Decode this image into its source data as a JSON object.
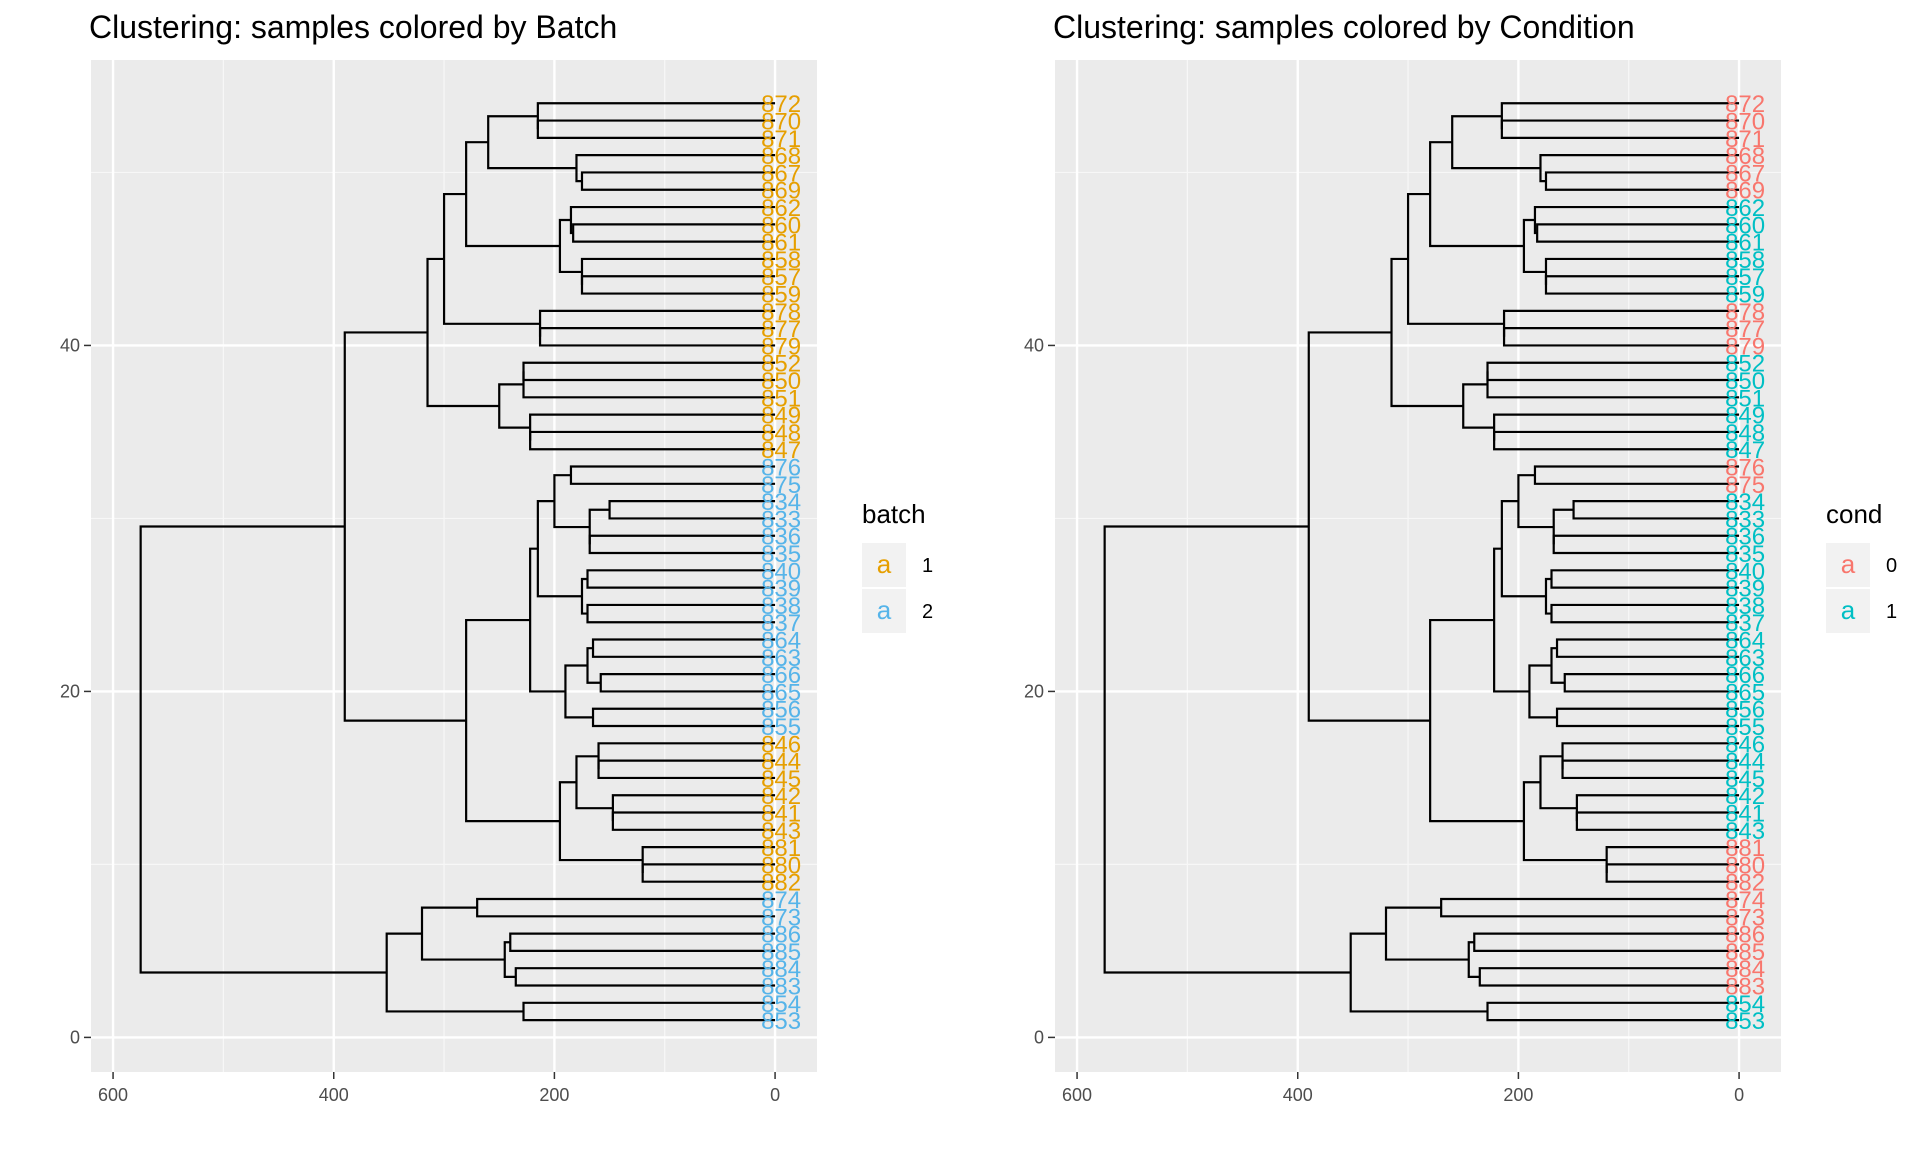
{
  "chart_data": [
    {
      "type": "dendrogram",
      "title": "Clustering: samples colored by Batch",
      "xlabel": "",
      "ylabel": "",
      "xlim": [
        620,
        -38
      ],
      "ylim": [
        -2,
        56.5
      ],
      "x_ticks": [
        600,
        400,
        200,
        0
      ],
      "y_ticks": [
        0,
        20,
        40
      ],
      "legend": {
        "title": "batch",
        "placement": "right",
        "key_glyph": "a",
        "entries": [
          {
            "label": "1",
            "color": "#E69F00"
          },
          {
            "label": "2",
            "color": "#56B4E9"
          }
        ]
      },
      "leaf_color_group": "batch"
    },
    {
      "type": "dendrogram",
      "title": "Clustering: samples colored by Condition",
      "xlabel": "",
      "ylabel": "",
      "xlim": [
        620,
        -38
      ],
      "ylim": [
        -2,
        56.5
      ],
      "x_ticks": [
        600,
        400,
        200,
        0
      ],
      "y_ticks": [
        0,
        20,
        40
      ],
      "legend": {
        "title": "cond",
        "placement": "right",
        "key_glyph": "a",
        "entries": [
          {
            "label": "0",
            "color": "#F8766D"
          },
          {
            "label": "1",
            "color": "#00BFC4"
          }
        ]
      },
      "leaf_color_group": "cond"
    }
  ],
  "leaves": [
    {
      "label": "853",
      "batch": "2",
      "cond": "1"
    },
    {
      "label": "854",
      "batch": "2",
      "cond": "1"
    },
    {
      "label": "883",
      "batch": "2",
      "cond": "0"
    },
    {
      "label": "884",
      "batch": "2",
      "cond": "0"
    },
    {
      "label": "885",
      "batch": "2",
      "cond": "0"
    },
    {
      "label": "886",
      "batch": "2",
      "cond": "0"
    },
    {
      "label": "873",
      "batch": "2",
      "cond": "0"
    },
    {
      "label": "874",
      "batch": "2",
      "cond": "0"
    },
    {
      "label": "882",
      "batch": "1",
      "cond": "0"
    },
    {
      "label": "880",
      "batch": "1",
      "cond": "0"
    },
    {
      "label": "881",
      "batch": "1",
      "cond": "0"
    },
    {
      "label": "843",
      "batch": "1",
      "cond": "1"
    },
    {
      "label": "841",
      "batch": "1",
      "cond": "1"
    },
    {
      "label": "842",
      "batch": "1",
      "cond": "1"
    },
    {
      "label": "845",
      "batch": "1",
      "cond": "1"
    },
    {
      "label": "844",
      "batch": "1",
      "cond": "1"
    },
    {
      "label": "846",
      "batch": "1",
      "cond": "1"
    },
    {
      "label": "855",
      "batch": "2",
      "cond": "1"
    },
    {
      "label": "856",
      "batch": "2",
      "cond": "1"
    },
    {
      "label": "865",
      "batch": "2",
      "cond": "1"
    },
    {
      "label": "866",
      "batch": "2",
      "cond": "1"
    },
    {
      "label": "863",
      "batch": "2",
      "cond": "1"
    },
    {
      "label": "864",
      "batch": "2",
      "cond": "1"
    },
    {
      "label": "837",
      "batch": "2",
      "cond": "1"
    },
    {
      "label": "838",
      "batch": "2",
      "cond": "1"
    },
    {
      "label": "839",
      "batch": "2",
      "cond": "1"
    },
    {
      "label": "840",
      "batch": "2",
      "cond": "1"
    },
    {
      "label": "835",
      "batch": "2",
      "cond": "1"
    },
    {
      "label": "836",
      "batch": "2",
      "cond": "1"
    },
    {
      "label": "833",
      "batch": "2",
      "cond": "1"
    },
    {
      "label": "834",
      "batch": "2",
      "cond": "1"
    },
    {
      "label": "875",
      "batch": "2",
      "cond": "0"
    },
    {
      "label": "876",
      "batch": "2",
      "cond": "0"
    },
    {
      "label": "847",
      "batch": "1",
      "cond": "1"
    },
    {
      "label": "848",
      "batch": "1",
      "cond": "1"
    },
    {
      "label": "849",
      "batch": "1",
      "cond": "1"
    },
    {
      "label": "851",
      "batch": "1",
      "cond": "1"
    },
    {
      "label": "850",
      "batch": "1",
      "cond": "1"
    },
    {
      "label": "852",
      "batch": "1",
      "cond": "1"
    },
    {
      "label": "879",
      "batch": "1",
      "cond": "0"
    },
    {
      "label": "877",
      "batch": "1",
      "cond": "0"
    },
    {
      "label": "878",
      "batch": "1",
      "cond": "0"
    },
    {
      "label": "859",
      "batch": "1",
      "cond": "1"
    },
    {
      "label": "857",
      "batch": "1",
      "cond": "1"
    },
    {
      "label": "858",
      "batch": "1",
      "cond": "1"
    },
    {
      "label": "861",
      "batch": "1",
      "cond": "1"
    },
    {
      "label": "860",
      "batch": "1",
      "cond": "1"
    },
    {
      "label": "862",
      "batch": "1",
      "cond": "1"
    },
    {
      "label": "869",
      "batch": "1",
      "cond": "0"
    },
    {
      "label": "867",
      "batch": "1",
      "cond": "0"
    },
    {
      "label": "868",
      "batch": "1",
      "cond": "0"
    },
    {
      "label": "871",
      "batch": "1",
      "cond": "0"
    },
    {
      "label": "870",
      "batch": "1",
      "cond": "0"
    },
    {
      "label": "872",
      "batch": "1",
      "cond": "0"
    }
  ],
  "merges": [
    {
      "id": "m_853_854",
      "left": "853",
      "right": "854",
      "height": 228
    },
    {
      "id": "m_884_883",
      "left": "884",
      "right": "883",
      "height": 235
    },
    {
      "id": "m_886_885",
      "left": "886",
      "right": "885",
      "height": 240
    },
    {
      "id": "m_8868_8834",
      "left": "m_886_885",
      "right": "m_884_883",
      "height": 245
    },
    {
      "id": "m_874_873",
      "left": "874",
      "right": "873",
      "height": 270
    },
    {
      "id": "m_87_88",
      "left": "m_874_873",
      "right": "m_8868_8834",
      "height": 320
    },
    {
      "id": "m_grpA",
      "left": "m_87_88",
      "right": "m_853_854",
      "height": 352
    },
    {
      "id": "m_880_882",
      "left": "880",
      "right": "882",
      "height": 120
    },
    {
      "id": "m_88x",
      "left": "881",
      "right": "m_880_882",
      "height": 120
    },
    {
      "id": "m_841_843",
      "left": "841",
      "right": "843",
      "height": 147
    },
    {
      "id": "m_842_84x",
      "left": "842",
      "right": "m_841_843",
      "height": 147
    },
    {
      "id": "m_844_845",
      "left": "844",
      "right": "845",
      "height": 160
    },
    {
      "id": "m_846_84x",
      "left": "846",
      "right": "m_844_845",
      "height": 160
    },
    {
      "id": "m_84all",
      "left": "m_846_84x",
      "right": "m_842_84x",
      "height": 180
    },
    {
      "id": "m_84_88",
      "left": "m_84all",
      "right": "m_88x",
      "height": 195
    },
    {
      "id": "m_865_866",
      "left": "865",
      "right": "866",
      "height": 158
    },
    {
      "id": "m_863_864",
      "left": "863",
      "right": "864",
      "height": 165
    },
    {
      "id": "m_86x",
      "left": "m_863_864",
      "right": "m_865_866",
      "height": 170
    },
    {
      "id": "m_855_856",
      "left": "855",
      "right": "856",
      "height": 165
    },
    {
      "id": "m_86_85",
      "left": "m_86x",
      "right": "m_855_856",
      "height": 190
    },
    {
      "id": "m_837_838",
      "left": "837",
      "right": "838",
      "height": 170
    },
    {
      "id": "m_839_840",
      "left": "839",
      "right": "840",
      "height": 170
    },
    {
      "id": "m_837_840",
      "left": "m_839_840",
      "right": "m_837_838",
      "height": 175
    },
    {
      "id": "m_833_834",
      "left": "833",
      "right": "834",
      "height": 150
    },
    {
      "id": "m_835_836",
      "left": "835",
      "right": "836",
      "height": 168
    },
    {
      "id": "m_833_836",
      "left": "m_833_834",
      "right": "m_835_836",
      "height": 168
    },
    {
      "id": "m_875_876",
      "left": "875",
      "right": "876",
      "height": 185
    },
    {
      "id": "m_87_83",
      "left": "m_875_876",
      "right": "m_833_836",
      "height": 200
    },
    {
      "id": "m_87_83_84",
      "left": "m_87_83",
      "right": "m_837_840",
      "height": 215
    },
    {
      "id": "m_8x_86",
      "left": "m_87_83_84",
      "right": "m_86_85",
      "height": 222
    },
    {
      "id": "m_grpB2",
      "left": "m_8x_86",
      "right": "m_84_88",
      "height": 280
    },
    {
      "id": "m_848_847",
      "left": "848",
      "right": "847",
      "height": 222
    },
    {
      "id": "m_849_84x",
      "left": "849",
      "right": "m_848_847",
      "height": 222
    },
    {
      "id": "m_850_852",
      "left": "850",
      "right": "852",
      "height": 228
    },
    {
      "id": "m_851_85x",
      "left": "851",
      "right": "m_850_852",
      "height": 228
    },
    {
      "id": "m_85all",
      "left": "m_851_85x",
      "right": "m_849_84x",
      "height": 250
    },
    {
      "id": "m_877_879",
      "left": "877",
      "right": "879",
      "height": 213
    },
    {
      "id": "m_878_87x",
      "left": "878",
      "right": "m_877_879",
      "height": 213
    },
    {
      "id": "m_857_859",
      "left": "857",
      "right": "859",
      "height": 175
    },
    {
      "id": "m_858_85x",
      "left": "858",
      "right": "m_857_859",
      "height": 175
    },
    {
      "id": "m_860_861",
      "left": "860",
      "right": "861",
      "height": 183
    },
    {
      "id": "m_862_86x",
      "left": "862",
      "right": "m_860_861",
      "height": 185
    },
    {
      "id": "m_86_85b",
      "left": "m_862_86x",
      "right": "m_858_85x",
      "height": 195
    },
    {
      "id": "m_867_869",
      "left": "867",
      "right": "869",
      "height": 175
    },
    {
      "id": "m_868_86x",
      "left": "868",
      "right": "m_867_869",
      "height": 180
    },
    {
      "id": "m_870_871",
      "left": "870",
      "right": "871",
      "height": 215
    },
    {
      "id": "m_872_87x",
      "left": "872",
      "right": "m_870_871",
      "height": 215
    },
    {
      "id": "m_87_86",
      "left": "m_872_87x",
      "right": "m_868_86x",
      "height": 260
    },
    {
      "id": "m_87_86_85",
      "left": "m_87_86",
      "right": "m_86_85b",
      "height": 280
    },
    {
      "id": "m_top_c",
      "left": "m_87_86_85",
      "right": "m_878_87x",
      "height": 300
    },
    {
      "id": "m_top_b",
      "left": "m_top_c",
      "right": "m_85all",
      "height": 315
    },
    {
      "id": "m_grpB1",
      "left": "m_top_b",
      "right": "m_grpB2",
      "height": 390
    },
    {
      "id": "m_root",
      "left": "m_grpB1",
      "right": "m_grpA",
      "height": 575
    }
  ]
}
